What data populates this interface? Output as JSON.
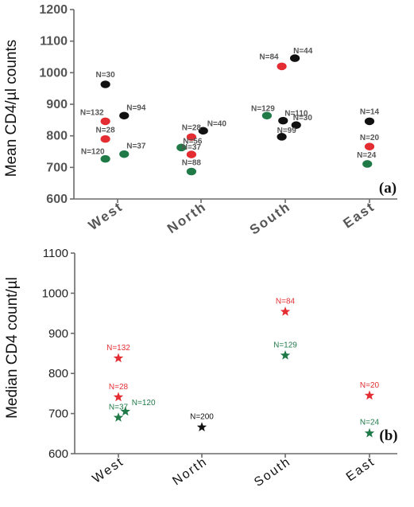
{
  "chart_data": [
    {
      "type": "scatter",
      "panel_label": "(a)",
      "ylabel": "Mean CD4/µl counts",
      "ylim": [
        600,
        1200
      ],
      "yticks": [
        "600",
        "700",
        "800",
        "900",
        "1000",
        "1100",
        "1200"
      ],
      "categories": [
        "West",
        "North",
        "South",
        "East"
      ],
      "colors": {
        "black": "#111111",
        "red": "#e32d32",
        "green": "#1f7a48"
      },
      "points": [
        {
          "category": "West",
          "offset": -0.28,
          "y": 963,
          "color": "black",
          "label": "N=30"
        },
        {
          "category": "West",
          "offset": -0.28,
          "y": 846,
          "color": "red",
          "label": "N=132"
        },
        {
          "category": "West",
          "offset": 0.15,
          "y": 864,
          "color": "black",
          "label": "N=94"
        },
        {
          "category": "West",
          "offset": -0.28,
          "y": 790,
          "color": "red",
          "label": "N=28"
        },
        {
          "category": "West",
          "offset": -0.28,
          "y": 727,
          "color": "green",
          "label": "N=120"
        },
        {
          "category": "West",
          "offset": 0.15,
          "y": 742,
          "color": "green",
          "label": "N=37"
        },
        {
          "category": "North",
          "offset": 0.05,
          "y": 816,
          "color": "black",
          "label": "N=40"
        },
        {
          "category": "North",
          "offset": -0.22,
          "y": 796,
          "color": "red",
          "label": "N=28"
        },
        {
          "category": "North",
          "offset": -0.45,
          "y": 763,
          "color": "green",
          "label": "N=56"
        },
        {
          "category": "North",
          "offset": -0.22,
          "y": 741,
          "color": "red",
          "label": "N=37"
        },
        {
          "category": "North",
          "offset": -0.22,
          "y": 687,
          "color": "green",
          "label": "N=88"
        },
        {
          "category": "South",
          "offset": 0.22,
          "y": 1046,
          "color": "black",
          "label": "N=44"
        },
        {
          "category": "South",
          "offset": -0.08,
          "y": 1020,
          "color": "red",
          "label": "N=84"
        },
        {
          "category": "South",
          "offset": -0.42,
          "y": 864,
          "color": "green",
          "label": "N=129"
        },
        {
          "category": "South",
          "offset": -0.05,
          "y": 848,
          "color": "black",
          "label": "N=110"
        },
        {
          "category": "South",
          "offset": 0.25,
          "y": 834,
          "color": "black",
          "label": "N=30"
        },
        {
          "category": "South",
          "offset": -0.08,
          "y": 797,
          "color": "black",
          "label": "N=99"
        },
        {
          "category": "East",
          "offset": 0.0,
          "y": 846,
          "color": "black",
          "label": "N=14"
        },
        {
          "category": "East",
          "offset": 0.0,
          "y": 766,
          "color": "red",
          "label": "N=20"
        },
        {
          "category": "East",
          "offset": -0.05,
          "y": 711,
          "color": "green",
          "label": "N=24"
        }
      ]
    },
    {
      "type": "scatter",
      "panel_label": "(b)",
      "ylabel": "Median CD4 count/µl",
      "ylim": [
        600,
        1100
      ],
      "yticks": [
        "600",
        "700",
        "800",
        "900",
        "1000",
        "1100"
      ],
      "categories": [
        "West",
        "North",
        "South",
        "East"
      ],
      "colors": {
        "black": "#111111",
        "red": "#e32d32",
        "green": "#1f7a48"
      },
      "points": [
        {
          "category": "West",
          "offset": 0.0,
          "y": 838,
          "color": "red",
          "label": "N=132"
        },
        {
          "category": "West",
          "offset": 0.0,
          "y": 741,
          "color": "red",
          "label": "N=28"
        },
        {
          "category": "West",
          "offset": 0.0,
          "y": 690,
          "color": "green",
          "label": "N=37"
        },
        {
          "category": "West",
          "offset": 0.16,
          "y": 705,
          "color": "green",
          "label": "N=120"
        },
        {
          "category": "North",
          "offset": 0.0,
          "y": 666,
          "color": "black",
          "label": "N=200"
        },
        {
          "category": "South",
          "offset": 0.0,
          "y": 954,
          "color": "red",
          "label": "N=84"
        },
        {
          "category": "South",
          "offset": 0.0,
          "y": 845,
          "color": "green",
          "label": "N=129"
        },
        {
          "category": "East",
          "offset": 0.0,
          "y": 745,
          "color": "red",
          "label": "N=20"
        },
        {
          "category": "East",
          "offset": 0.0,
          "y": 651,
          "color": "green",
          "label": "N=24"
        }
      ]
    }
  ]
}
